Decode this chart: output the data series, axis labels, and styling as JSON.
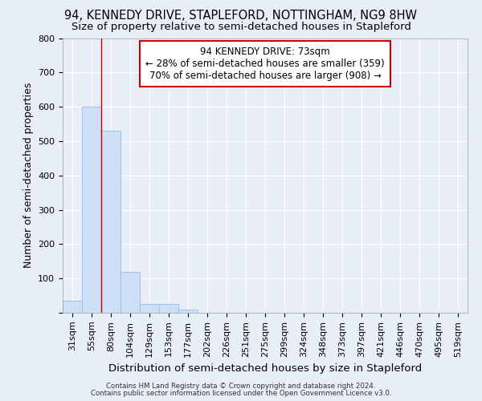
{
  "title": "94, KENNEDY DRIVE, STAPLEFORD, NOTTINGHAM, NG9 8HW",
  "subtitle": "Size of property relative to semi-detached houses in Stapleford",
  "xlabel": "Distribution of semi-detached houses by size in Stapleford",
  "ylabel": "Number of semi-detached properties",
  "categories": [
    "31sqm",
    "55sqm",
    "80sqm",
    "104sqm",
    "129sqm",
    "153sqm",
    "177sqm",
    "202sqm",
    "226sqm",
    "251sqm",
    "275sqm",
    "299sqm",
    "324sqm",
    "348sqm",
    "373sqm",
    "397sqm",
    "421sqm",
    "446sqm",
    "470sqm",
    "495sqm",
    "519sqm"
  ],
  "values": [
    35,
    600,
    530,
    120,
    25,
    25,
    10,
    0,
    0,
    0,
    0,
    0,
    0,
    0,
    0,
    0,
    0,
    0,
    0,
    0,
    0
  ],
  "bar_color": "#ccdff5",
  "bar_edge_color": "#a0c0e8",
  "red_line_x": 2.0,
  "annotation_line1": "94 KENNEDY DRIVE: 73sqm",
  "annotation_line2": "← 28% of semi-detached houses are smaller (359)",
  "annotation_line3": "70% of semi-detached houses are larger (908) →",
  "annotation_border_color": "#cc0000",
  "footer_line1": "Contains HM Land Registry data © Crown copyright and database right 2024.",
  "footer_line2": "Contains public sector information licensed under the Open Government Licence v3.0.",
  "background_color": "#e8eef8",
  "plot_bg_color": "#e8eef8",
  "grid_color": "#ffffff",
  "ylim": [
    0,
    800
  ],
  "yticks": [
    0,
    100,
    200,
    300,
    400,
    500,
    600,
    700,
    800
  ],
  "title_fontsize": 10.5,
  "subtitle_fontsize": 9.5,
  "tick_fontsize": 8,
  "ylabel_fontsize": 9,
  "xlabel_fontsize": 9.5
}
